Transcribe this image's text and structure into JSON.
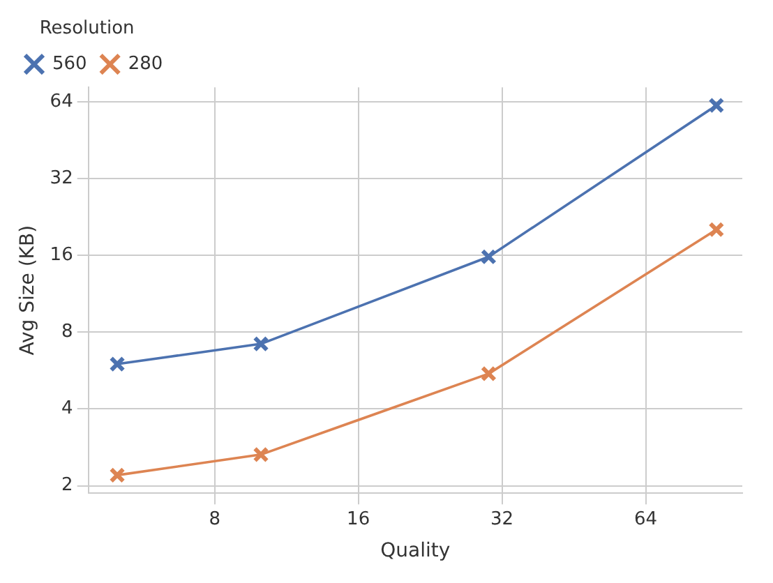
{
  "chart_data": {
    "type": "line",
    "xlabel": "Quality",
    "ylabel": "Avg Size (KB)",
    "legend_title": "Resolution",
    "x": [
      5,
      10,
      30,
      90
    ],
    "series": [
      {
        "name": "560",
        "color": "#4c72b0",
        "values": [
          6.0,
          7.2,
          15.8,
          62
        ]
      },
      {
        "name": "280",
        "color": "#dd8452",
        "values": [
          2.2,
          2.65,
          5.5,
          20.2
        ]
      }
    ],
    "log": "xy",
    "xlim": [
      4.35,
      102
    ],
    "ylim": [
      1.87,
      73
    ],
    "xticks": [
      8,
      16,
      32,
      64
    ],
    "yticks": [
      2,
      4,
      8,
      16,
      32,
      64
    ],
    "grid": true,
    "legend": "top left",
    "marker": "cross",
    "line_style": "solid"
  }
}
